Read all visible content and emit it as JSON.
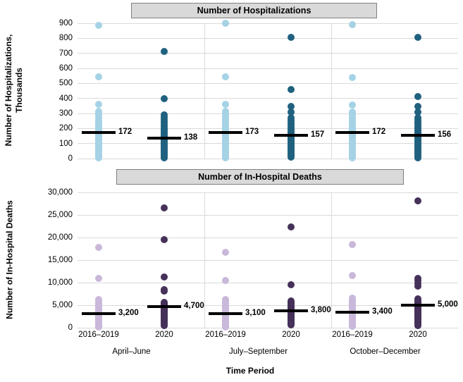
{
  "chart_data": [
    {
      "type": "scatter",
      "title": "Number of Hospitalizations",
      "ylabel_lines": [
        "Number of Hospitalizations,",
        "Thousands"
      ],
      "ylim": [
        0,
        900
      ],
      "yticks": [
        0,
        100,
        200,
        300,
        400,
        500,
        600,
        700,
        800,
        900
      ],
      "ytick_labels": [
        "0",
        "100",
        "200",
        "300",
        "400",
        "500",
        "600",
        "700",
        "800",
        "900"
      ],
      "grid": true,
      "columns": [
        {
          "group": "April–June",
          "series": "2016–2019",
          "color": "light_blue",
          "median": 172,
          "median_label": "172",
          "values": [
            884,
            545,
            360,
            312,
            300,
            286,
            270,
            255,
            242,
            230,
            219,
            209,
            200,
            192,
            185,
            178,
            172,
            166,
            158,
            150,
            142,
            134,
            126,
            118,
            110,
            102,
            94,
            86,
            78,
            70,
            62,
            54,
            46,
            38,
            30,
            22,
            15,
            8,
            3
          ]
        },
        {
          "group": "April–June",
          "series": "2020",
          "color": "dark_teal",
          "median": 138,
          "median_label": "138",
          "values": [
            712,
            400,
            290,
            276,
            262,
            249,
            237,
            225,
            214,
            203,
            193,
            183,
            174,
            165,
            157,
            149,
            141,
            138,
            131,
            124,
            117,
            110,
            103,
            96,
            89,
            82,
            75,
            68,
            61,
            54,
            47,
            40,
            33,
            26,
            19,
            12,
            6
          ]
        },
        {
          "group": "July–September",
          "series": "2016–2019",
          "color": "light_blue",
          "median": 173,
          "median_label": "173",
          "values": [
            898,
            545,
            362,
            312,
            299,
            285,
            271,
            257,
            244,
            232,
            221,
            210,
            200,
            191,
            183,
            176,
            173,
            167,
            159,
            151,
            143,
            135,
            127,
            119,
            111,
            103,
            95,
            87,
            79,
            71,
            63,
            55,
            47,
            39,
            31,
            23,
            15,
            7
          ]
        },
        {
          "group": "July–September",
          "series": "2020",
          "color": "dark_teal",
          "median": 157,
          "median_label": "157",
          "values": [
            808,
            460,
            345,
            310,
            272,
            259,
            247,
            235,
            224,
            213,
            203,
            193,
            184,
            175,
            167,
            160,
            157,
            150,
            143,
            136,
            129,
            122,
            115,
            108,
            101,
            94,
            87,
            80,
            73,
            66,
            59,
            52,
            45,
            38,
            31,
            24,
            17,
            10
          ]
        },
        {
          "group": "October–December",
          "series": "2016–2019",
          "color": "light_blue",
          "median": 172,
          "median_label": "172",
          "values": [
            890,
            540,
            356,
            310,
            297,
            283,
            269,
            256,
            243,
            231,
            220,
            210,
            200,
            191,
            183,
            176,
            172,
            165,
            157,
            149,
            141,
            133,
            125,
            117,
            109,
            101,
            93,
            85,
            77,
            69,
            61,
            53,
            45,
            37,
            29,
            21,
            14,
            7
          ]
        },
        {
          "group": "October–December",
          "series": "2020",
          "color": "dark_teal",
          "median": 156,
          "median_label": "156",
          "values": [
            806,
            414,
            345,
            308,
            272,
            259,
            246,
            234,
            223,
            212,
            202,
            192,
            183,
            174,
            166,
            159,
            156,
            148,
            140,
            132,
            124,
            116,
            108,
            100,
            92,
            84,
            76,
            68,
            60,
            52,
            44,
            36,
            28,
            20,
            13,
            6
          ]
        }
      ]
    },
    {
      "type": "scatter",
      "title": "Number of In-Hospital Deaths",
      "ylabel_lines": [
        "Number of In-Hospital Deaths"
      ],
      "ylim": [
        0,
        30000
      ],
      "yticks": [
        0,
        5000,
        10000,
        15000,
        20000,
        25000,
        30000
      ],
      "ytick_labels": [
        "0",
        "5,000",
        "10,000",
        "15,000",
        "20,000",
        "25,000",
        "30,000"
      ],
      "grid": true,
      "columns": [
        {
          "group": "April–June",
          "series": "2016–2019",
          "color": "light_purple",
          "median": 3200,
          "median_label": "3,200",
          "values": [
            17800,
            10900,
            6300,
            5900,
            5500,
            5150,
            4850,
            4600,
            4350,
            4100,
            3900,
            3700,
            3500,
            3350,
            3200,
            3050,
            2900,
            2750,
            2600,
            2450,
            2300,
            2150,
            2000,
            1850,
            1700,
            1550,
            1400,
            1250,
            1100,
            950,
            800,
            650,
            500,
            350,
            180
          ]
        },
        {
          "group": "April–June",
          "series": "2020",
          "color": "dark_purple",
          "median": 4700,
          "median_label": "4,700",
          "values": [
            26500,
            19600,
            11300,
            8500,
            8100,
            5700,
            5500,
            5300,
            5150,
            5000,
            4850,
            4700,
            4550,
            4400,
            4250,
            4100,
            3950,
            3800,
            3650,
            3500,
            3300,
            3100,
            2900,
            2700,
            2500,
            2300,
            2100,
            1900,
            1700,
            1500,
            1300,
            1100,
            900,
            650,
            400
          ]
        },
        {
          "group": "July–September",
          "series": "2016–2019",
          "color": "light_purple",
          "median": 3100,
          "median_label": "3,100",
          "values": [
            16700,
            10500,
            6300,
            5850,
            5450,
            5050,
            4700,
            4400,
            4150,
            3900,
            3700,
            3500,
            3300,
            3100,
            2950,
            2800,
            2650,
            2500,
            2350,
            2200,
            2050,
            1900,
            1750,
            1600,
            1450,
            1300,
            1150,
            1000,
            850,
            700,
            550,
            400,
            250,
            130
          ]
        },
        {
          "group": "July–September",
          "series": "2020",
          "color": "dark_purple",
          "median": 3800,
          "median_label": "3,800",
          "values": [
            22300,
            9500,
            6000,
            5700,
            5400,
            5150,
            4900,
            4650,
            4400,
            4200,
            4000,
            3800,
            3600,
            3400,
            3200,
            3000,
            2850,
            2700,
            2550,
            2400,
            2250,
            2100,
            1950,
            1800,
            1650,
            1500,
            1350,
            1200,
            1050,
            900,
            750,
            600
          ]
        },
        {
          "group": "October–December",
          "series": "2016–2019",
          "color": "light_purple",
          "median": 3400,
          "median_label": "3,400",
          "values": [
            18500,
            11500,
            6500,
            6100,
            5750,
            5400,
            5100,
            4800,
            4550,
            4300,
            4050,
            3850,
            3650,
            3400,
            3250,
            3100,
            2950,
            2800,
            2650,
            2500,
            2350,
            2200,
            2050,
            1900,
            1750,
            1600,
            1450,
            1300,
            1150,
            1000,
            850,
            700,
            550,
            400,
            250
          ]
        },
        {
          "group": "October–December",
          "series": "2020",
          "color": "dark_purple",
          "median": 5000,
          "median_label": "5,000",
          "values": [
            28200,
            11000,
            10400,
            9800,
            9200,
            6400,
            6100,
            5850,
            5600,
            5400,
            5200,
            5000,
            4800,
            4600,
            4400,
            4200,
            4000,
            3800,
            3600,
            3400,
            3200,
            3000,
            2800,
            2600,
            2400,
            2200,
            2000,
            1800,
            1550,
            1300,
            1050,
            800,
            500
          ]
        }
      ]
    }
  ],
  "x_axis": {
    "tick_labels": [
      "2016–2019",
      "2020",
      "2016–2019",
      "2020",
      "2016–2019",
      "2020"
    ],
    "group_labels": [
      "April–June",
      "July–September",
      "October–December"
    ],
    "title": "Time Period"
  },
  "colors": {
    "light_blue": "#a5d2e5",
    "dark_teal": "#20617f",
    "light_purple": "#c9b8da",
    "dark_purple": "#453159",
    "gridline": "#dadada",
    "header_bg": "#d9d9d9",
    "header_border": "#7f7f7f",
    "median_line": "#000000"
  }
}
